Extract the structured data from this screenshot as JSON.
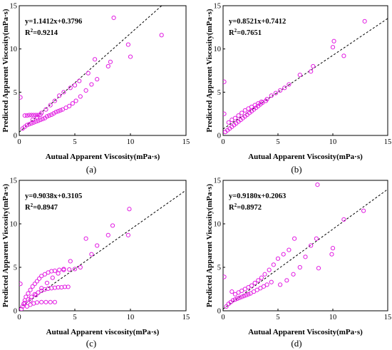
{
  "chart_data": [
    {
      "type": "scatter",
      "panel_label": "(a)",
      "xlabel": "Autual Apparent Viscosity(mPa·s)",
      "ylabel": "Predicted Apparent Viscosity(mPa·s)",
      "xlim": [
        0,
        15
      ],
      "ylim": [
        0,
        15
      ],
      "xticks": [
        "0",
        "5",
        "10",
        "15"
      ],
      "yticks": [
        "0",
        "5",
        "10",
        "15"
      ],
      "fit_equation": "y=1.1412x+0.3796",
      "r2_prefix": "R",
      "r2_sup": "2",
      "r2_value": "=0.9214",
      "fit": {
        "slope": 1.1412,
        "intercept": 0.3796
      },
      "marker_color": "#e21de2",
      "points": [
        [
          0.1,
          4.4
        ],
        [
          0.5,
          2.3
        ],
        [
          0.7,
          2.3
        ],
        [
          0.9,
          2.35
        ],
        [
          1.1,
          2.35
        ],
        [
          1.3,
          2.35
        ],
        [
          1.5,
          2.35
        ],
        [
          1.7,
          2.35
        ],
        [
          1.9,
          2.4
        ],
        [
          0.3,
          0.8
        ],
        [
          0.5,
          1.0
        ],
        [
          0.7,
          1.2
        ],
        [
          0.9,
          1.3
        ],
        [
          1.1,
          1.4
        ],
        [
          1.3,
          1.5
        ],
        [
          1.5,
          1.6
        ],
        [
          1.7,
          1.7
        ],
        [
          1.9,
          1.8
        ],
        [
          2.1,
          1.9
        ],
        [
          2.3,
          2.0
        ],
        [
          2.5,
          2.2
        ],
        [
          2.7,
          2.3
        ],
        [
          2.9,
          2.4
        ],
        [
          3.1,
          2.55
        ],
        [
          3.3,
          2.7
        ],
        [
          3.5,
          2.8
        ],
        [
          3.7,
          2.9
        ],
        [
          3.9,
          3.0
        ],
        [
          4.2,
          3.2
        ],
        [
          4.5,
          3.4
        ],
        [
          4.8,
          3.7
        ],
        [
          5.1,
          4.0
        ],
        [
          5.5,
          4.5
        ],
        [
          6.0,
          5.2
        ],
        [
          6.5,
          5.9
        ],
        [
          7.0,
          6.5
        ],
        [
          1.2,
          1.8
        ],
        [
          1.6,
          2.1
        ],
        [
          2.0,
          2.6
        ],
        [
          2.4,
          3.0
        ],
        [
          2.8,
          3.5
        ],
        [
          3.2,
          4.0
        ],
        [
          3.6,
          4.6
        ],
        [
          4.0,
          5.0
        ],
        [
          4.6,
          5.5
        ],
        [
          5.0,
          5.8
        ],
        [
          5.4,
          6.3
        ],
        [
          6.2,
          7.2
        ],
        [
          6.8,
          8.8
        ],
        [
          8.0,
          8.0
        ],
        [
          8.2,
          8.5
        ],
        [
          8.5,
          13.6
        ],
        [
          9.8,
          10.5
        ],
        [
          10.0,
          9.1
        ],
        [
          12.8,
          11.6
        ]
      ]
    },
    {
      "type": "scatter",
      "panel_label": "(b)",
      "xlabel": "Autual Apparent Viscosity(mPa·s)",
      "ylabel": "Predicted Apparent Viscosity(mPa·s)",
      "xlim": [
        0,
        15
      ],
      "ylim": [
        0,
        15
      ],
      "xticks": [
        "0",
        "5",
        "10",
        "15"
      ],
      "yticks": [
        "0",
        "5",
        "10",
        "15"
      ],
      "fit_equation": "y=0.8521x+0.7412",
      "r2_prefix": "R",
      "r2_sup": "2",
      "r2_value": "=0.7651",
      "fit": {
        "slope": 0.8521,
        "intercept": 0.7412
      },
      "marker_color": "#e21de2",
      "points": [
        [
          0.1,
          6.2
        ],
        [
          0.1,
          2.5
        ],
        [
          0.2,
          0.4
        ],
        [
          0.4,
          0.6
        ],
        [
          0.6,
          0.8
        ],
        [
          0.8,
          1.0
        ],
        [
          1.0,
          1.2
        ],
        [
          1.2,
          1.4
        ],
        [
          1.4,
          1.6
        ],
        [
          1.6,
          1.8
        ],
        [
          1.8,
          2.0
        ],
        [
          2.0,
          2.2
        ],
        [
          2.2,
          2.4
        ],
        [
          2.4,
          2.6
        ],
        [
          2.6,
          2.8
        ],
        [
          2.8,
          3.0
        ],
        [
          3.0,
          3.2
        ],
        [
          3.2,
          3.4
        ],
        [
          3.4,
          3.6
        ],
        [
          3.6,
          3.8
        ],
        [
          3.9,
          4.0
        ],
        [
          0.5,
          1.5
        ],
        [
          0.8,
          1.8
        ],
        [
          1.1,
          2.0
        ],
        [
          1.4,
          2.3
        ],
        [
          1.7,
          2.6
        ],
        [
          2.0,
          2.9
        ],
        [
          2.3,
          3.1
        ],
        [
          2.6,
          3.3
        ],
        [
          2.9,
          3.5
        ],
        [
          3.2,
          3.7
        ],
        [
          3.5,
          3.9
        ],
        [
          4.0,
          4.2
        ],
        [
          4.4,
          4.6
        ],
        [
          4.8,
          4.9
        ],
        [
          5.2,
          5.2
        ],
        [
          5.6,
          5.5
        ],
        [
          6.0,
          5.9
        ],
        [
          7.0,
          7.0
        ],
        [
          8.0,
          7.4
        ],
        [
          8.2,
          8.0
        ],
        [
          10.0,
          10.2
        ],
        [
          10.1,
          10.9
        ],
        [
          11.0,
          9.2
        ],
        [
          12.9,
          13.2
        ]
      ]
    },
    {
      "type": "scatter",
      "panel_label": "(c)",
      "xlabel": "Autual Apparent viscosity(mPa·s)",
      "ylabel": "Predicted  Apparent Viscosity(mPa·s)",
      "xlim": [
        0,
        15
      ],
      "ylim": [
        0,
        15
      ],
      "xticks": [
        "0",
        "5",
        "10",
        "15"
      ],
      "yticks": [
        "0",
        "5",
        "10",
        "15"
      ],
      "fit_equation": "y=0.9038x+0.3105",
      "r2_prefix": "R",
      "r2_sup": "2",
      "r2_value": "=0.8947",
      "fit": {
        "slope": 0.9038,
        "intercept": 0.3105
      },
      "marker_color": "#e21de2",
      "points": [
        [
          0.1,
          3.1
        ],
        [
          0.2,
          0.2
        ],
        [
          0.3,
          0.5
        ],
        [
          0.4,
          0.8
        ],
        [
          0.5,
          1.2
        ],
        [
          0.6,
          1.6
        ],
        [
          0.8,
          2.0
        ],
        [
          1.0,
          2.4
        ],
        [
          1.2,
          2.8
        ],
        [
          1.4,
          3.1
        ],
        [
          1.6,
          3.4
        ],
        [
          1.8,
          3.7
        ],
        [
          2.0,
          4.0
        ],
        [
          2.3,
          4.2
        ],
        [
          2.6,
          4.4
        ],
        [
          2.9,
          4.55
        ],
        [
          3.2,
          4.6
        ],
        [
          3.6,
          4.7
        ],
        [
          4.0,
          4.7
        ],
        [
          4.5,
          4.75
        ],
        [
          0.5,
          0.9
        ],
        [
          0.8,
          1.3
        ],
        [
          1.1,
          1.6
        ],
        [
          1.4,
          1.9
        ],
        [
          1.7,
          2.1
        ],
        [
          2.0,
          2.3
        ],
        [
          2.3,
          2.45
        ],
        [
          2.6,
          2.55
        ],
        [
          2.9,
          2.6
        ],
        [
          3.2,
          2.65
        ],
        [
          3.5,
          2.7
        ],
        [
          3.8,
          2.7
        ],
        [
          4.1,
          2.75
        ],
        [
          4.4,
          2.75
        ],
        [
          0.7,
          0.5
        ],
        [
          1.0,
          0.7
        ],
        [
          1.3,
          0.85
        ],
        [
          1.6,
          0.95
        ],
        [
          2.0,
          1.0
        ],
        [
          2.4,
          1.0
        ],
        [
          2.8,
          1.0
        ],
        [
          3.2,
          1.0
        ],
        [
          1.0,
          1.2
        ],
        [
          1.5,
          1.8
        ],
        [
          2.0,
          2.6
        ],
        [
          2.5,
          3.2
        ],
        [
          3.0,
          3.8
        ],
        [
          3.5,
          4.3
        ],
        [
          4.0,
          4.8
        ],
        [
          4.6,
          5.7
        ],
        [
          5.0,
          4.8
        ],
        [
          5.5,
          5.0
        ],
        [
          6.0,
          8.3
        ],
        [
          6.5,
          6.5
        ],
        [
          7.0,
          7.5
        ],
        [
          8.0,
          8.7
        ],
        [
          8.4,
          9.8
        ],
        [
          9.9,
          11.7
        ],
        [
          9.8,
          8.7
        ]
      ]
    },
    {
      "type": "scatter",
      "panel_label": "(d)",
      "xlabel": "Autual Apparent Viscosity(mPa·s)",
      "ylabel": "Predicted Apparent Viscosity(mPa·s)",
      "xlim": [
        0,
        15
      ],
      "ylim": [
        0,
        15
      ],
      "xticks": [
        "0",
        "5",
        "10",
        "15"
      ],
      "yticks": [
        "0",
        "5",
        "10",
        "15"
      ],
      "fit_equation": "y=0.9180x+0.2063",
      "r2_prefix": "R",
      "r2_sup": "2",
      "r2_value": "=0.8972",
      "fit": {
        "slope": 0.918,
        "intercept": 0.2063
      },
      "marker_color": "#e21de2",
      "points": [
        [
          0.1,
          3.9
        ],
        [
          0.3,
          0.5
        ],
        [
          0.5,
          0.8
        ],
        [
          0.7,
          1.0
        ],
        [
          0.9,
          1.2
        ],
        [
          1.1,
          1.3
        ],
        [
          1.3,
          1.4
        ],
        [
          1.5,
          1.5
        ],
        [
          1.7,
          1.6
        ],
        [
          1.9,
          1.7
        ],
        [
          2.1,
          1.8
        ],
        [
          2.3,
          1.9
        ],
        [
          2.5,
          2.0
        ],
        [
          2.8,
          2.2
        ],
        [
          3.1,
          2.4
        ],
        [
          3.4,
          2.6
        ],
        [
          3.7,
          2.8
        ],
        [
          4.0,
          3.0
        ],
        [
          4.4,
          3.3
        ],
        [
          0.8,
          2.2
        ],
        [
          1.1,
          1.9
        ],
        [
          1.4,
          2.1
        ],
        [
          1.7,
          2.3
        ],
        [
          2.0,
          2.5
        ],
        [
          2.3,
          2.7
        ],
        [
          2.6,
          2.9
        ],
        [
          2.9,
          3.2
        ],
        [
          3.2,
          3.5
        ],
        [
          3.5,
          3.8
        ],
        [
          3.8,
          4.2
        ],
        [
          4.2,
          4.7
        ],
        [
          4.6,
          5.3
        ],
        [
          5.0,
          6.0
        ],
        [
          5.5,
          6.5
        ],
        [
          6.0,
          7.0
        ],
        [
          6.5,
          8.3
        ],
        [
          5.2,
          3.0
        ],
        [
          5.8,
          3.5
        ],
        [
          6.4,
          4.2
        ],
        [
          7.0,
          5.0
        ],
        [
          7.5,
          6.2
        ],
        [
          8.0,
          7.5
        ],
        [
          8.5,
          8.3
        ],
        [
          8.7,
          4.9
        ],
        [
          8.6,
          14.5
        ],
        [
          9.9,
          6.5
        ],
        [
          10.0,
          7.2
        ],
        [
          11.0,
          10.5
        ],
        [
          12.8,
          11.5
        ]
      ]
    }
  ]
}
